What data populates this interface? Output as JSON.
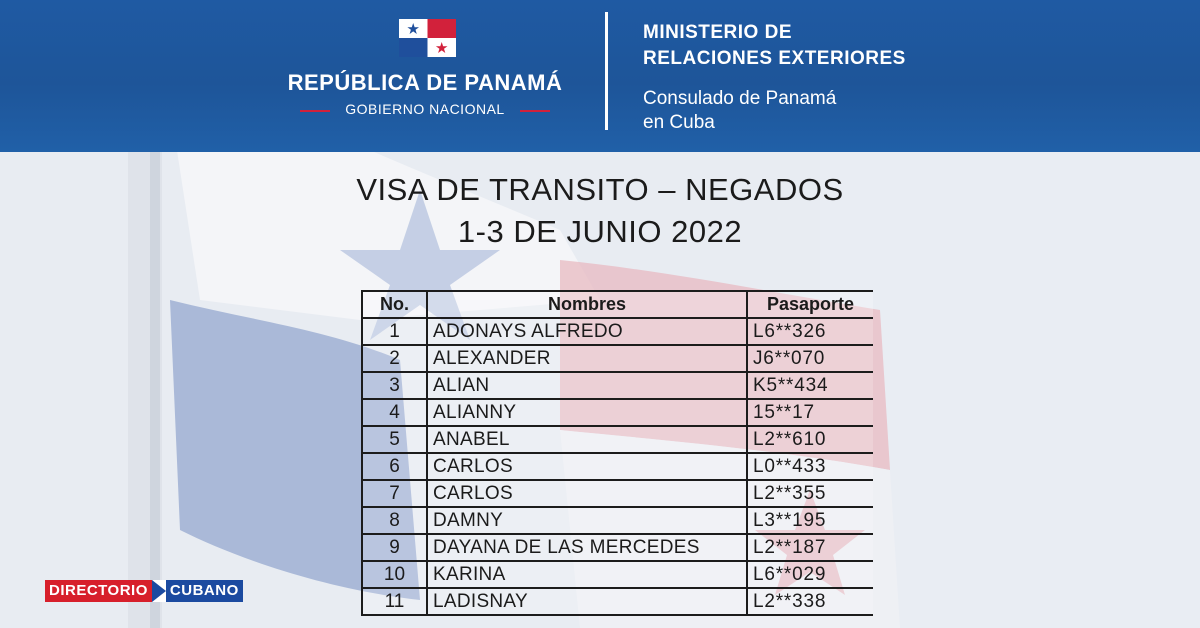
{
  "header": {
    "republic": "REPÚBLICA DE PANAMÁ",
    "government": "GOBIERNO NACIONAL",
    "ministry_line1": "MINISTERIO DE",
    "ministry_line2": "RELACIONES EXTERIORES",
    "consulate_line1": "Consulado de Panamá",
    "consulate_line2": "en Cuba"
  },
  "document": {
    "title_line1": "VISA DE TRANSITO – NEGADOS",
    "title_line2": "1-3 DE JUNIO 2022"
  },
  "table": {
    "headers": [
      "No.",
      "Nombres",
      "Pasaporte"
    ],
    "rows": [
      {
        "no": "1",
        "name": "ADONAYS ALFREDO",
        "passport": "L6**326"
      },
      {
        "no": "2",
        "name": "ALEXANDER",
        "passport": "J6**070"
      },
      {
        "no": "3",
        "name": "ALIAN",
        "passport": "K5**434"
      },
      {
        "no": "4",
        "name": "ALIANNY",
        "passport": "15**17"
      },
      {
        "no": "5",
        "name": "ANABEL",
        "passport": "L2**610"
      },
      {
        "no": "6",
        "name": "CARLOS",
        "passport": "L0**433"
      },
      {
        "no": "7",
        "name": "CARLOS",
        "passport": "L2**355"
      },
      {
        "no": "8",
        "name": "DAMNY",
        "passport": "L3**195"
      },
      {
        "no": "9",
        "name": "DAYANA DE LAS MERCEDES",
        "passport": "L2**187"
      },
      {
        "no": "10",
        "name": "KARINA",
        "passport": "L6**029"
      },
      {
        "no": "11",
        "name": "LADISNAY",
        "passport": "L2**338"
      }
    ]
  },
  "watermark": {
    "left": "DIRECTORIO",
    "right": "CUBANO"
  },
  "colors": {
    "header_blue": "#1f5aa3",
    "flag_red": "#d2213b",
    "flag_blue": "#1f4f9c"
  }
}
